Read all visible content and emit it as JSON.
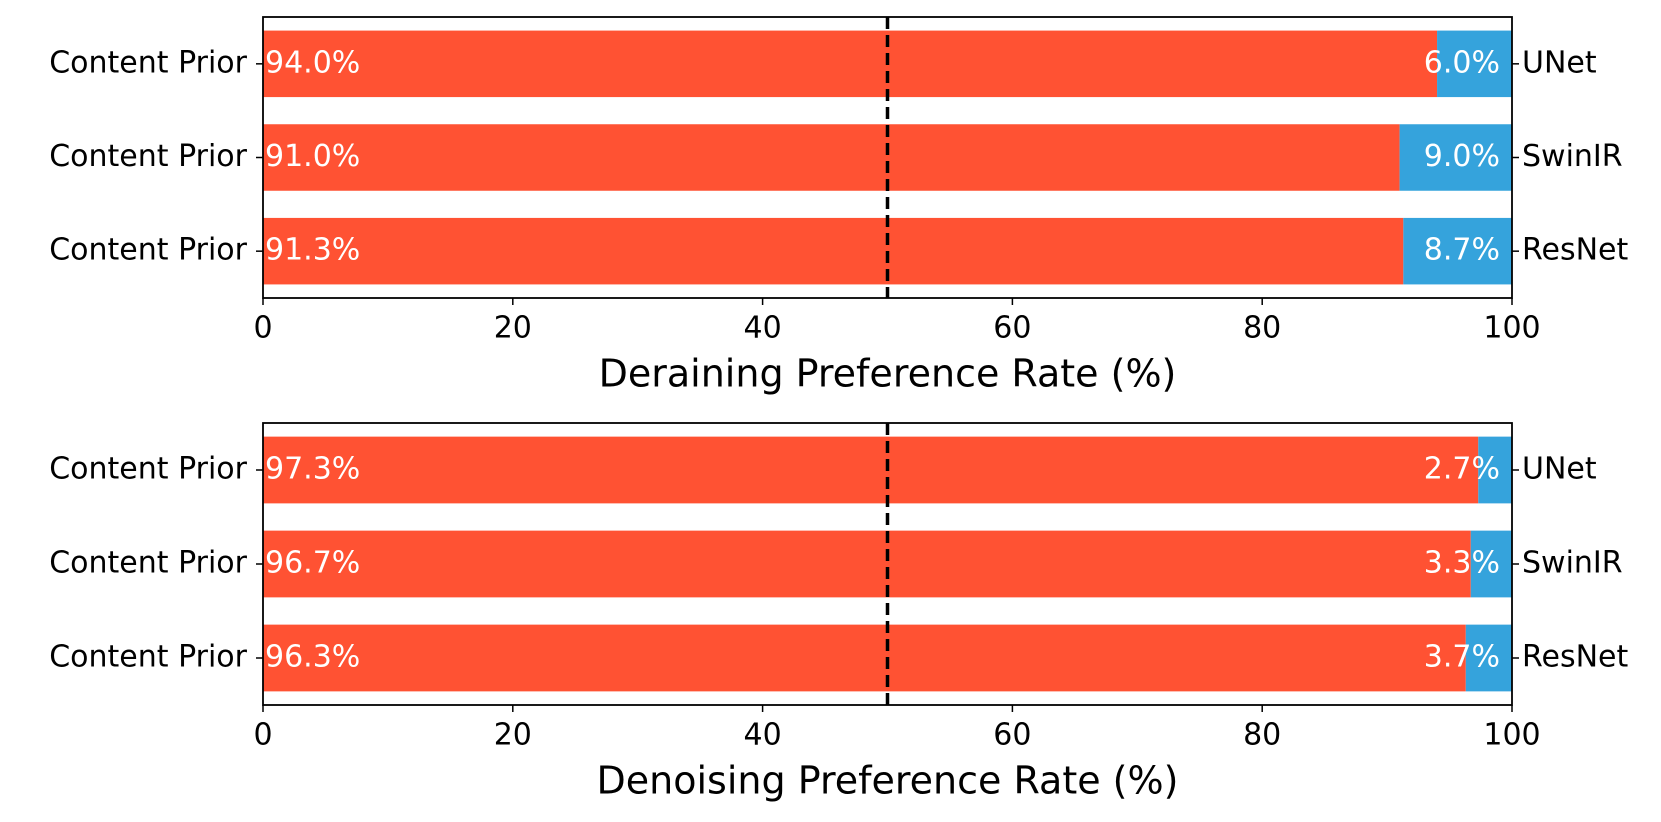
{
  "chart_data": [
    {
      "type": "bar",
      "orientation": "horizontal",
      "stacked": true,
      "categories": [
        "UNet",
        "SwinIR",
        "ResNet"
      ],
      "left_labels": [
        "Content Prior",
        "Content Prior",
        "Content Prior"
      ],
      "series": [
        {
          "color": "#ff5233",
          "values": [
            94.0,
            91.0,
            91.3
          ],
          "value_labels": [
            "94.0%",
            "91.0%",
            "91.3%"
          ]
        },
        {
          "color": "#35a3dc",
          "values": [
            6.0,
            9.0,
            8.7
          ],
          "value_labels": [
            "6.0%",
            "9.0%",
            "8.7%"
          ]
        }
      ],
      "xlabel": "Deraining Preference Rate (%)",
      "xlim": [
        0,
        100
      ],
      "xticks": [
        0,
        20,
        40,
        60,
        80,
        100
      ],
      "vline": 50
    },
    {
      "type": "bar",
      "orientation": "horizontal",
      "stacked": true,
      "categories": [
        "UNet",
        "SwinIR",
        "ResNet"
      ],
      "left_labels": [
        "Content Prior",
        "Content Prior",
        "Content Prior"
      ],
      "series": [
        {
          "color": "#ff5233",
          "values": [
            97.3,
            96.7,
            96.3
          ],
          "value_labels": [
            "97.3%",
            "96.7%",
            "96.3%"
          ]
        },
        {
          "color": "#35a3dc",
          "values": [
            2.7,
            3.3,
            3.7
          ],
          "value_labels": [
            "2.7%",
            "3.3%",
            "3.7%"
          ]
        }
      ],
      "xlabel": "Denoising Preference Rate (%)",
      "xlim": [
        0,
        100
      ],
      "xticks": [
        0,
        20,
        40,
        60,
        80,
        100
      ],
      "vline": 50
    }
  ]
}
